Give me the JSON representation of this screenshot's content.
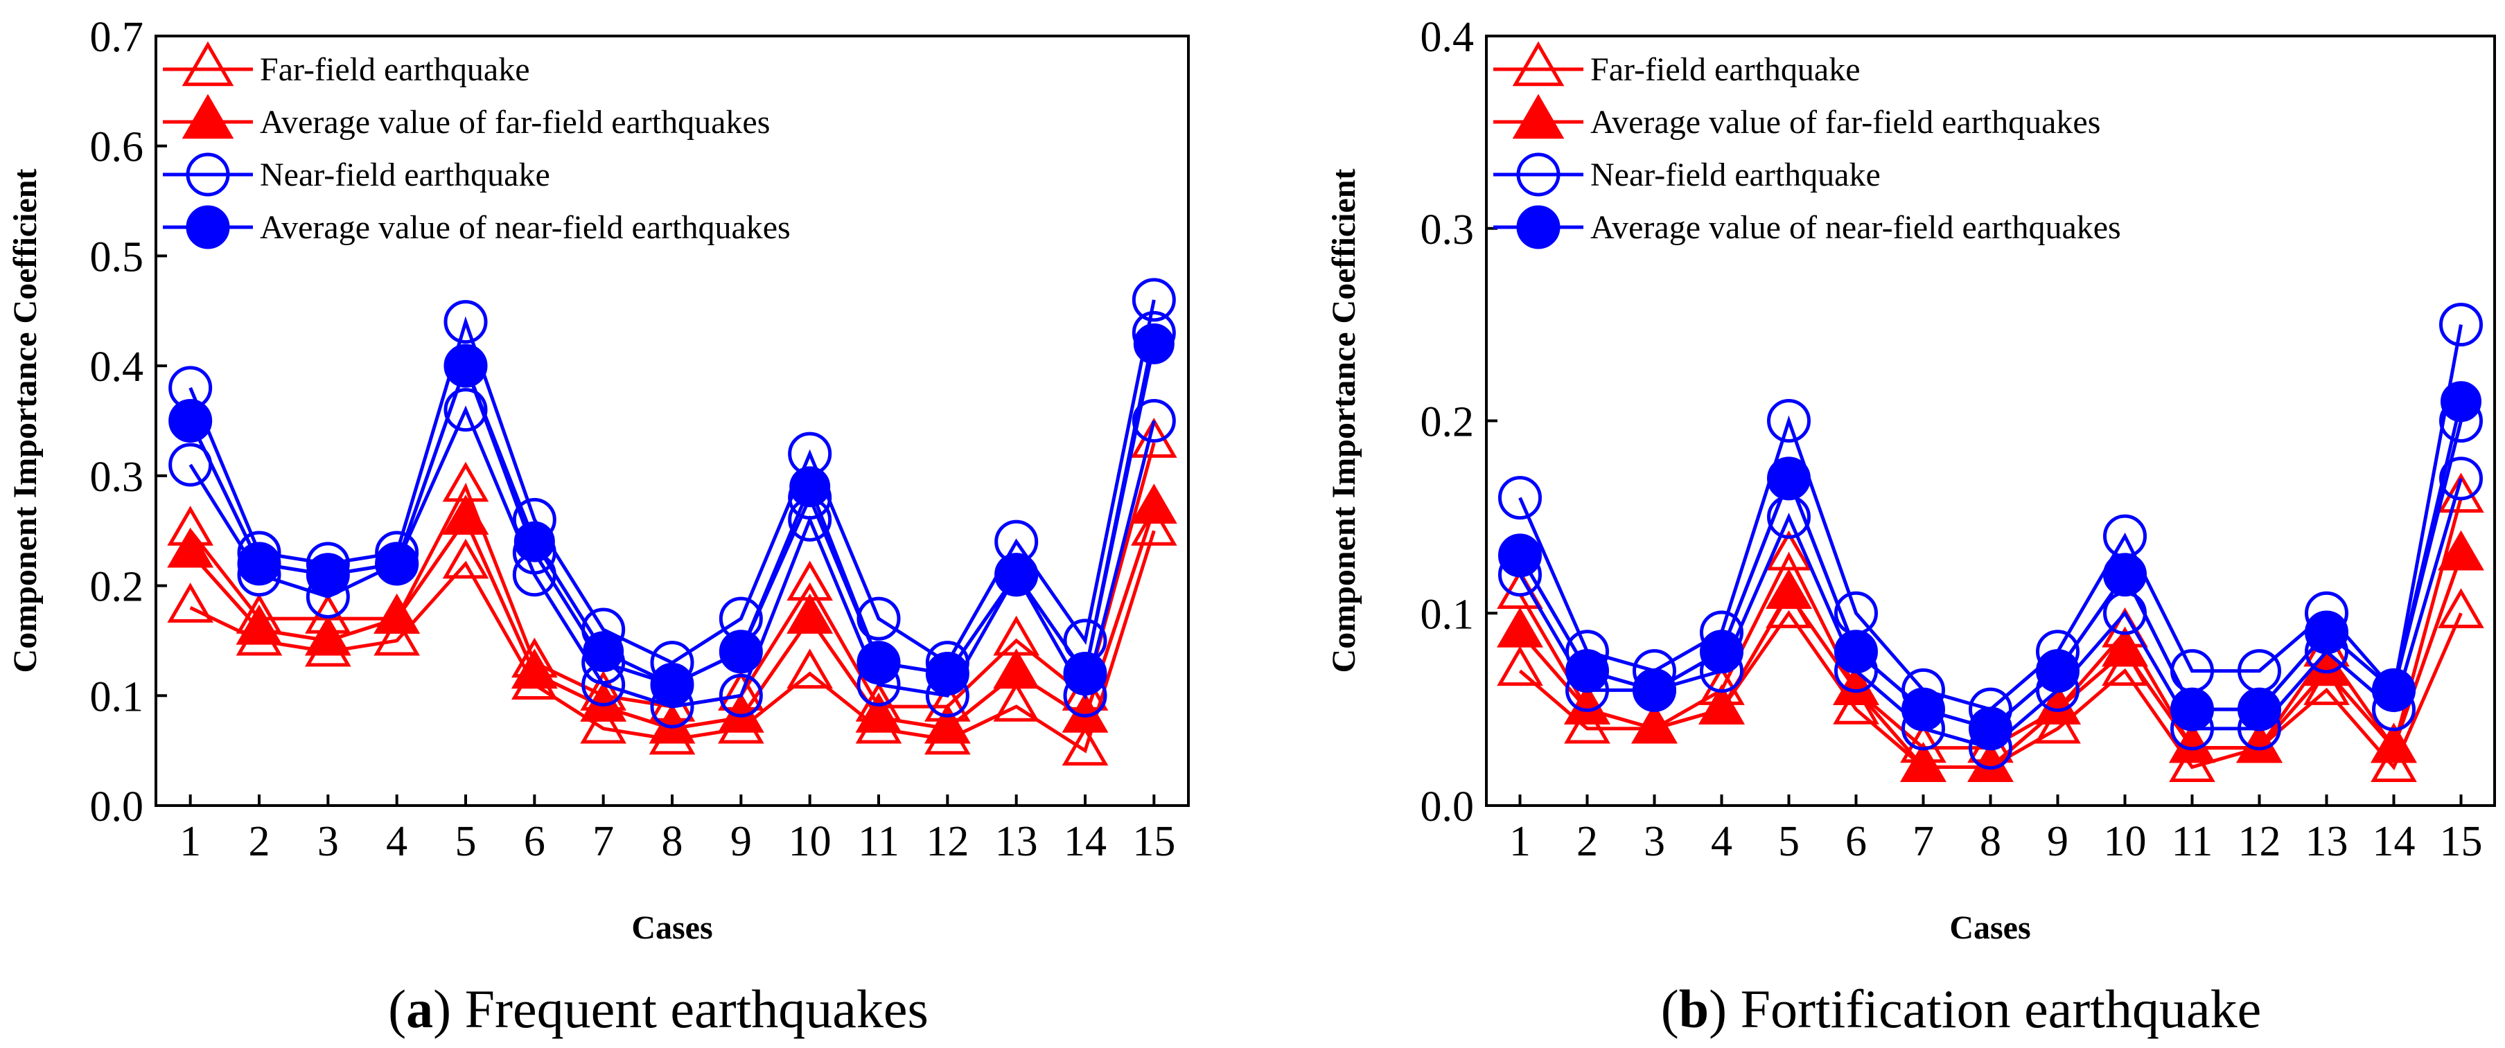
{
  "colors": {
    "far": "#ff0000",
    "near": "#0000ff",
    "axis": "#000000"
  },
  "chart_data": [
    {
      "type": "line",
      "panel_letter": "a",
      "panel_title": " Frequent earthquakes",
      "xlabel": "Cases",
      "ylabel": "Component Importance Coefficient",
      "categories": [
        "1",
        "2",
        "3",
        "4",
        "5",
        "6",
        "7",
        "8",
        "9",
        "10",
        "11",
        "12",
        "13",
        "14",
        "15"
      ],
      "ylim": [
        0.0,
        0.7
      ],
      "yticks": [
        "0.0",
        "0.1",
        "0.2",
        "0.3",
        "0.4",
        "0.5",
        "0.6",
        "0.7"
      ],
      "legend": [
        "Far-field earthquake",
        "Average value of far-field earthquakes",
        "Near-field earthquake",
        "Average value of near-field earthquakes"
      ],
      "series": [
        {
          "name": "Far-field earthquake",
          "kind": "far",
          "values": [
            0.25,
            0.17,
            0.17,
            0.17,
            0.29,
            0.13,
            0.1,
            0.09,
            0.1,
            0.2,
            0.09,
            0.09,
            0.15,
            0.1,
            0.33
          ]
        },
        {
          "name": "Far-field earthquake",
          "kind": "far",
          "values": [
            0.23,
            0.16,
            0.15,
            0.17,
            0.26,
            0.12,
            0.09,
            0.07,
            0.08,
            0.17,
            0.08,
            0.07,
            0.12,
            0.08,
            0.27
          ]
        },
        {
          "name": "Far-field earthquake",
          "kind": "far",
          "values": [
            0.18,
            0.15,
            0.14,
            0.15,
            0.22,
            0.11,
            0.07,
            0.06,
            0.07,
            0.12,
            0.07,
            0.06,
            0.09,
            0.05,
            0.25
          ]
        },
        {
          "name": "Average value of far-field earthquakes",
          "kind": "far-avg",
          "values": [
            0.23,
            0.16,
            0.15,
            0.17,
            0.26,
            0.12,
            0.09,
            0.07,
            0.08,
            0.17,
            0.08,
            0.07,
            0.12,
            0.08,
            0.27
          ]
        },
        {
          "name": "Near-field earthquake",
          "kind": "near",
          "values": [
            0.38,
            0.23,
            0.22,
            0.23,
            0.44,
            0.26,
            0.16,
            0.13,
            0.17,
            0.32,
            0.17,
            0.13,
            0.24,
            0.15,
            0.46
          ]
        },
        {
          "name": "Near-field earthquake",
          "kind": "near",
          "values": [
            0.35,
            0.22,
            0.21,
            0.22,
            0.4,
            0.23,
            0.13,
            0.11,
            0.14,
            0.28,
            0.13,
            0.12,
            0.21,
            0.12,
            0.43
          ]
        },
        {
          "name": "Near-field earthquake",
          "kind": "near",
          "values": [
            0.31,
            0.21,
            0.19,
            0.22,
            0.36,
            0.21,
            0.11,
            0.09,
            0.1,
            0.26,
            0.11,
            0.1,
            0.21,
            0.1,
            0.35
          ]
        },
        {
          "name": "Average value of near-field earthquakes",
          "kind": "near-avg",
          "values": [
            0.35,
            0.22,
            0.21,
            0.22,
            0.4,
            0.24,
            0.14,
            0.11,
            0.14,
            0.29,
            0.13,
            0.12,
            0.21,
            0.12,
            0.42
          ]
        }
      ]
    },
    {
      "type": "line",
      "panel_letter": "b",
      "panel_title": " Fortification earthquake",
      "xlabel": "Cases",
      "ylabel": "Component Importance Coefficient",
      "categories": [
        "1",
        "2",
        "3",
        "4",
        "5",
        "6",
        "7",
        "8",
        "9",
        "10",
        "11",
        "12",
        "13",
        "14",
        "15"
      ],
      "ylim": [
        0.0,
        0.4
      ],
      "yticks": [
        "0.0",
        "0.1",
        "0.2",
        "0.3",
        "0.4"
      ],
      "legend": [
        "Far-field earthquake",
        "Average value of far-field earthquakes",
        "Near-field earthquake",
        "Average value of near-field earthquakes"
      ],
      "series": [
        {
          "name": "Far-field earthquake",
          "kind": "far",
          "values": [
            0.11,
            0.05,
            0.04,
            0.06,
            0.13,
            0.06,
            0.03,
            0.03,
            0.05,
            0.09,
            0.03,
            0.03,
            0.08,
            0.03,
            0.16
          ]
        },
        {
          "name": "Far-field earthquake",
          "kind": "far",
          "values": [
            0.09,
            0.05,
            0.04,
            0.05,
            0.11,
            0.06,
            0.02,
            0.02,
            0.05,
            0.08,
            0.03,
            0.03,
            0.07,
            0.03,
            0.13
          ]
        },
        {
          "name": "Far-field earthquake",
          "kind": "far",
          "values": [
            0.07,
            0.04,
            0.04,
            0.05,
            0.1,
            0.05,
            0.02,
            0.02,
            0.04,
            0.07,
            0.02,
            0.03,
            0.06,
            0.02,
            0.1
          ]
        },
        {
          "name": "Average value of far-field earthquakes",
          "kind": "far-avg",
          "values": [
            0.09,
            0.05,
            0.04,
            0.05,
            0.11,
            0.06,
            0.02,
            0.02,
            0.05,
            0.08,
            0.03,
            0.03,
            0.07,
            0.03,
            0.13
          ]
        },
        {
          "name": "Near-field earthquake",
          "kind": "near",
          "values": [
            0.16,
            0.08,
            0.07,
            0.09,
            0.2,
            0.1,
            0.06,
            0.05,
            0.08,
            0.14,
            0.07,
            0.07,
            0.1,
            0.06,
            0.25
          ]
        },
        {
          "name": "Near-field earthquake",
          "kind": "near",
          "values": [
            0.13,
            0.07,
            0.06,
            0.08,
            0.17,
            0.08,
            0.05,
            0.04,
            0.07,
            0.12,
            0.05,
            0.05,
            0.09,
            0.06,
            0.2
          ]
        },
        {
          "name": "Near-field earthquake",
          "kind": "near",
          "values": [
            0.12,
            0.06,
            0.06,
            0.07,
            0.15,
            0.07,
            0.04,
            0.03,
            0.06,
            0.1,
            0.04,
            0.04,
            0.08,
            0.05,
            0.17
          ]
        },
        {
          "name": "Average value of near-field earthquakes",
          "kind": "near-avg",
          "values": [
            0.13,
            0.07,
            0.06,
            0.08,
            0.17,
            0.08,
            0.05,
            0.04,
            0.07,
            0.12,
            0.05,
            0.05,
            0.09,
            0.06,
            0.21
          ]
        }
      ]
    }
  ]
}
